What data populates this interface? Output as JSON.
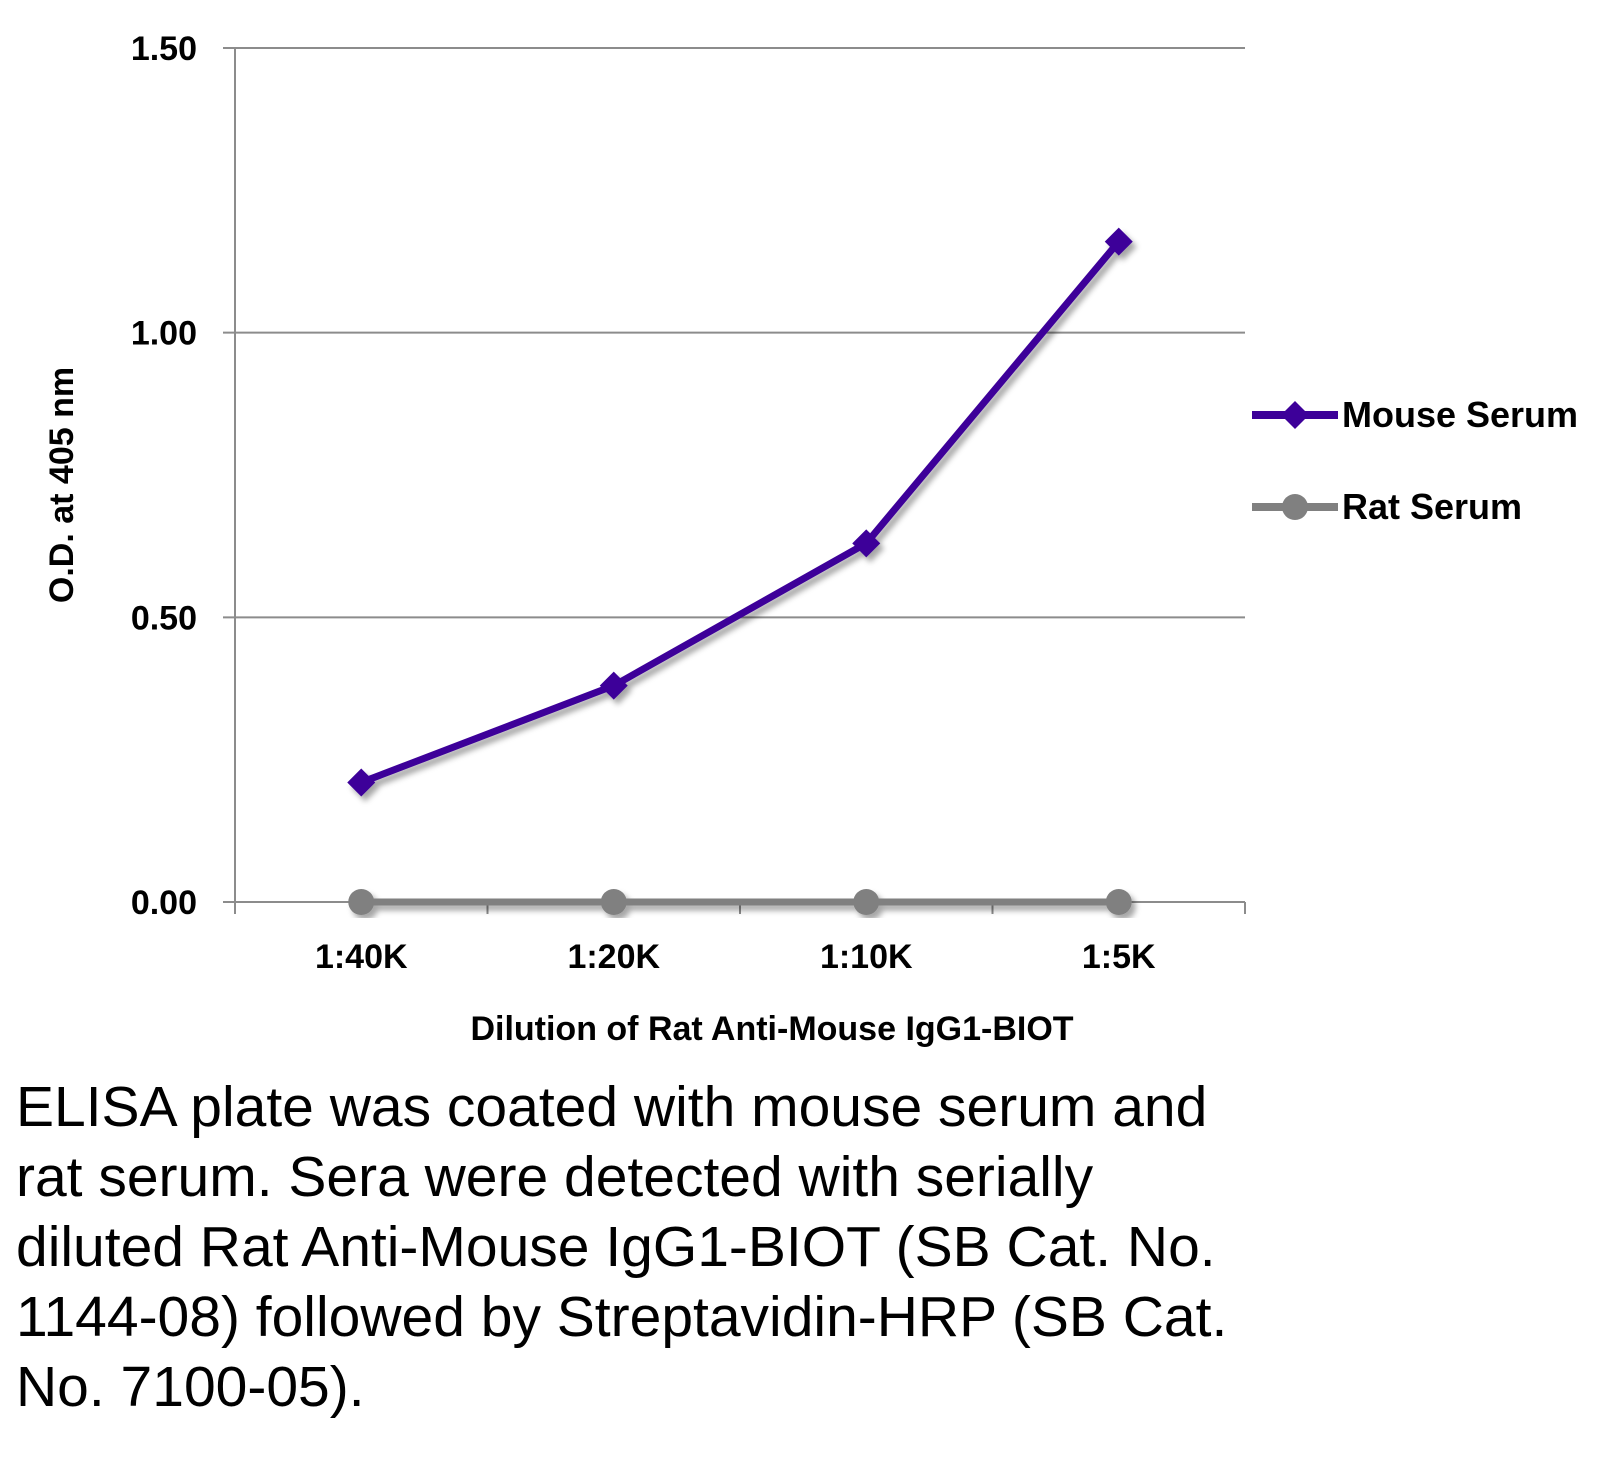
{
  "chart_data": {
    "type": "line",
    "title": "",
    "categories": [
      "1:40K",
      "1:20K",
      "1:10K",
      "1:5K"
    ],
    "series": [
      {
        "name": "Mouse Serum",
        "values": [
          0.21,
          0.38,
          0.63,
          1.16
        ],
        "color": "#3d0099",
        "marker": "diamond"
      },
      {
        "name": "Rat Serum",
        "values": [
          0.0,
          0.0,
          0.0,
          0.0
        ],
        "color": "#808080",
        "marker": "circle"
      }
    ],
    "yticks": [
      "0.00",
      "0.50",
      "1.00",
      "1.50"
    ],
    "ylim": [
      0,
      1.5
    ],
    "xlabel": "Dilution of Rat Anti-Mouse IgG1-BIOT",
    "ylabel": "O.D. at 405 nm",
    "grid": true,
    "legend": "right"
  },
  "caption": "ELISA plate was coated with mouse serum and rat serum.  Sera were detected with serially diluted Rat Anti-Mouse IgG1-BIOT (SB Cat. No. 1144-08) followed by Streptavidin-HRP (SB Cat. No. 7100-05)."
}
